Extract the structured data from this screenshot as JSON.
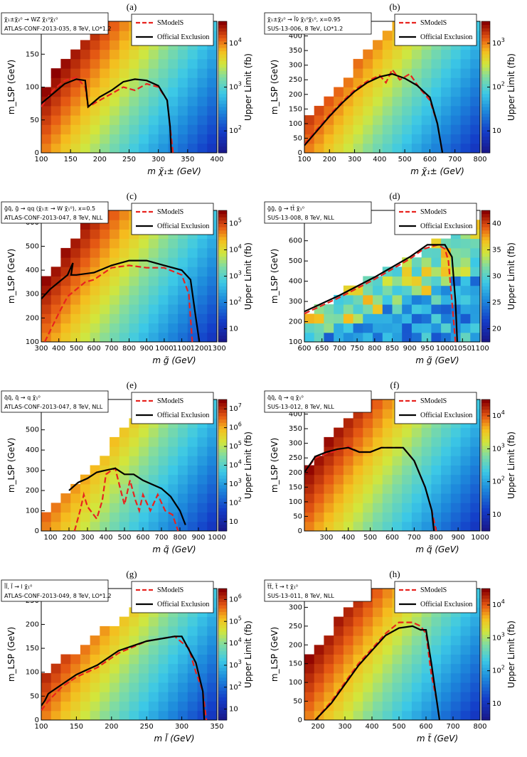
{
  "chart_data": [
    {
      "type": "heatmap",
      "panel_label": "(a)",
      "process": "χ̃₁±χ̃₂⁰ → WZ χ̃₁⁰χ̃₁⁰",
      "analysis": "ATLAS-CONF-2013-035, 8 TeV, LO*1.2",
      "xlabel": "m χ̃₁± (GeV)",
      "ylabel": "m_LSP (GeV)",
      "zlabel": "Upper Limit (fb)",
      "xlim": [
        100,
        400
      ],
      "ylim": [
        0,
        200
      ],
      "xticks": [
        "100",
        "150",
        "200",
        "250",
        "300",
        "350",
        "400"
      ],
      "yticks": [
        "0",
        "50",
        "100",
        "150",
        "200"
      ],
      "zticks": [
        "10^2",
        "10^3",
        "10^4"
      ],
      "zscale": "log",
      "zlim": [
        70,
        15000
      ],
      "legend": [
        "SModelS",
        "Official Exclusion"
      ],
      "diag_offset": 0,
      "zpattern": "diag",
      "series": [
        {
          "name": "SModelS",
          "x": [
            100,
            120,
            140,
            160,
            175,
            180,
            200,
            220,
            240,
            260,
            280,
            300,
            315,
            320,
            325
          ],
          "y": [
            70,
            95,
            110,
            115,
            100,
            70,
            80,
            90,
            100,
            95,
            105,
            100,
            80,
            40,
            0
          ]
        },
        {
          "name": "Official Exclusion",
          "x": [
            100,
            120,
            140,
            160,
            175,
            180,
            200,
            220,
            240,
            260,
            280,
            300,
            315,
            320,
            322
          ],
          "y": [
            75,
            90,
            105,
            112,
            110,
            70,
            85,
            95,
            108,
            112,
            110,
            102,
            80,
            40,
            0
          ]
        }
      ]
    },
    {
      "type": "heatmap",
      "panel_label": "(b)",
      "process": "χ̃₁±χ̃₂⁰ → l̃ν̃ χ̃₁⁰χ̃₁⁰, x=0.95",
      "analysis": "SUS-13-006, 8 TeV, LO*1.2",
      "xlabel": "m χ̃₁± (GeV)",
      "ylabel": "m_LSP (GeV)",
      "zlabel": "Upper Limit (fb)",
      "xlim": [
        100,
        800
      ],
      "ylim": [
        0,
        450
      ],
      "xticks": [
        "100",
        "200",
        "300",
        "400",
        "500",
        "600",
        "700",
        "800"
      ],
      "yticks": [
        "0",
        "50",
        "100",
        "150",
        "200",
        "250",
        "300",
        "350",
        "400",
        "450"
      ],
      "zticks": [
        "10",
        "10^2",
        "10^3"
      ],
      "zscale": "log",
      "zlim": [
        3,
        2000
      ],
      "legend": [
        "SModelS",
        "Official Exclusion"
      ],
      "diag_offset": 0,
      "zpattern": "diag",
      "series": [
        {
          "name": "SModelS",
          "x": [
            100,
            150,
            200,
            250,
            300,
            350,
            400,
            425,
            450,
            480,
            520,
            560,
            600,
            630,
            650
          ],
          "y": [
            30,
            80,
            130,
            175,
            215,
            245,
            265,
            240,
            285,
            250,
            270,
            220,
            180,
            100,
            0
          ]
        },
        {
          "name": "Official Exclusion",
          "x": [
            100,
            150,
            200,
            250,
            300,
            350,
            400,
            450,
            500,
            550,
            600,
            630,
            650
          ],
          "y": [
            25,
            75,
            125,
            170,
            210,
            240,
            260,
            270,
            255,
            230,
            190,
            100,
            0
          ]
        }
      ]
    },
    {
      "type": "heatmap",
      "panel_label": "(c)",
      "process": "g̃q̃, g̃ → qq (χ̃₁± → W χ̃₁⁰), x=0.5",
      "analysis": "ATLAS-CONF-2013-047, 8 TeV, NLL",
      "xlabel": "m g̃ (GeV)",
      "ylabel": "m_LSP (GeV)",
      "zlabel": "Upper Limit (fb)",
      "xlim": [
        300,
        1300
      ],
      "ylim": [
        100,
        650
      ],
      "xticks": [
        "300",
        "400",
        "500",
        "600",
        "700",
        "800",
        "900",
        "1000",
        "1100",
        "1200",
        "1300"
      ],
      "yticks": [
        "100",
        "200",
        "300",
        "400",
        "500",
        "600"
      ],
      "zticks": [
        "10",
        "10^2",
        "10^3",
        "10^4",
        "10^5"
      ],
      "zscale": "log",
      "zlim": [
        3,
        100000
      ],
      "legend": [
        "SModelS",
        "Official Exclusion"
      ],
      "diag_offset": 50,
      "zpattern": "diag",
      "series": [
        {
          "name": "SModelS",
          "x": [
            320,
            400,
            450,
            500,
            550,
            600,
            700,
            800,
            900,
            1000,
            1100,
            1140,
            1150,
            1160
          ],
          "y": [
            100,
            220,
            290,
            320,
            350,
            360,
            410,
            420,
            410,
            410,
            380,
            300,
            200,
            100
          ]
        },
        {
          "name": "Official Exclusion",
          "x": [
            300,
            350,
            400,
            450,
            480,
            470,
            500,
            600,
            700,
            800,
            900,
            1000,
            1100,
            1150,
            1180,
            1200
          ],
          "y": [
            280,
            320,
            350,
            380,
            430,
            380,
            380,
            390,
            420,
            440,
            440,
            420,
            400,
            360,
            200,
            100
          ]
        }
      ]
    },
    {
      "type": "heatmap",
      "panel_label": "(d)",
      "process": "g̃g̃, g̃ → tt̄ χ̃₁⁰",
      "analysis": "SUS-13-008, 8 TeV, NLL",
      "xlabel": "m g̃ (GeV)",
      "ylabel": "m_LSP (GeV)",
      "zlabel": "Upper Limit (fb)",
      "xlim": [
        600,
        1100
      ],
      "ylim": [
        100,
        750
      ],
      "xticks": [
        "600",
        "650",
        "700",
        "750",
        "800",
        "850",
        "900",
        "950",
        "1000",
        "1050",
        "1100"
      ],
      "yticks": [
        "100",
        "200",
        "300",
        "400",
        "500",
        "600",
        "700"
      ],
      "zticks": [
        "20",
        "25",
        "30",
        "35",
        "40"
      ],
      "zscale": "linear",
      "zlim": [
        16,
        41
      ],
      "legend": [
        "SModelS",
        "Official Exclusion"
      ],
      "diag_offset": 350,
      "zpattern": "noise",
      "series": [
        {
          "name": "SModelS",
          "x": [
            600,
            700,
            800,
            900,
            940,
            980,
            1000,
            1010,
            1020,
            1030
          ],
          "y": [
            240,
            320,
            410,
            510,
            560,
            580,
            560,
            500,
            300,
            100
          ]
        },
        {
          "name": "Official Exclusion",
          "x": [
            600,
            700,
            800,
            900,
            950,
            1000,
            1020,
            1030,
            1035
          ],
          "y": [
            250,
            330,
            420,
            520,
            580,
            580,
            520,
            300,
            100
          ]
        }
      ]
    },
    {
      "type": "heatmap",
      "panel_label": "(e)",
      "process": "q̃q̃, q̃ → q χ̃₁⁰",
      "analysis": "ATLAS-CONF-2013-047, 8 TeV, NLL",
      "xlabel": "m q̃ (GeV)",
      "ylabel": "m_LSP (GeV)",
      "zlabel": "Upper Limit (fb)",
      "xlim": [
        50,
        1000
      ],
      "ylim": [
        0,
        650
      ],
      "xticks": [
        "100",
        "200",
        "300",
        "400",
        "500",
        "600",
        "700",
        "800",
        "900",
        "1000"
      ],
      "yticks": [
        "0",
        "100",
        "200",
        "300",
        "400",
        "500",
        "600"
      ],
      "zticks": [
        "10",
        "10^2",
        "10^3",
        "10^4",
        "10^5",
        "10^6",
        "10^7"
      ],
      "zscale": "log",
      "zlim": [
        3,
        30000000
      ],
      "legend": [
        "SModelS",
        "Official Exclusion"
      ],
      "diag_offset": 0,
      "zpattern": "diag",
      "series": [
        {
          "name": "SModelS",
          "x": [
            230,
            260,
            280,
            300,
            350,
            380,
            400,
            430,
            450,
            480,
            500,
            530,
            560,
            580,
            600,
            640,
            680,
            720,
            760,
            790
          ],
          "y": [
            0,
            100,
            180,
            120,
            60,
            150,
            280,
            300,
            310,
            200,
            130,
            250,
            150,
            100,
            180,
            100,
            180,
            100,
            80,
            0
          ]
        },
        {
          "name": "Official Exclusion",
          "x": [
            200,
            250,
            300,
            350,
            400,
            450,
            500,
            550,
            600,
            650,
            700,
            750,
            800,
            830
          ],
          "y": [
            200,
            240,
            260,
            290,
            300,
            310,
            280,
            280,
            250,
            230,
            210,
            170,
            100,
            30
          ]
        }
      ]
    },
    {
      "type": "heatmap",
      "panel_label": "(f)",
      "process": "q̃q̃, q̃ → q χ̃₁⁰",
      "analysis": "SUS-13-012, 8 TeV, NLL",
      "xlabel": "m q̃ (GeV)",
      "ylabel": "m_LSP (GeV)",
      "zlabel": "Upper Limit (fb)",
      "xlim": [
        200,
        1000
      ],
      "ylim": [
        0,
        450
      ],
      "xticks": [
        "300",
        "400",
        "500",
        "600",
        "700",
        "800",
        "900",
        "1000"
      ],
      "yticks": [
        "0",
        "50",
        "100",
        "150",
        "200",
        "250",
        "300",
        "350",
        "400",
        "450"
      ],
      "zticks": [
        "10",
        "10^2",
        "10^3",
        "10^4"
      ],
      "zscale": "log",
      "zlim": [
        10,
        20000
      ],
      "legend": [
        "SModelS",
        "Official Exclusion"
      ],
      "diag_offset": 0,
      "zpattern": "diag",
      "series": [
        {
          "name": "SModelS",
          "x": [
            200,
            250,
            300,
            350,
            400,
            450,
            500,
            550,
            600,
            650,
            700,
            750,
            780,
            800
          ],
          "y": [
            200,
            250,
            265,
            275,
            290,
            270,
            270,
            285,
            285,
            285,
            240,
            150,
            70,
            0
          ]
        },
        {
          "name": "Official Exclusion",
          "x": [
            200,
            250,
            300,
            350,
            400,
            450,
            500,
            550,
            600,
            650,
            700,
            750,
            780,
            790
          ],
          "y": [
            200,
            255,
            270,
            280,
            285,
            270,
            270,
            285,
            285,
            285,
            240,
            150,
            70,
            0
          ]
        }
      ]
    },
    {
      "type": "heatmap",
      "panel_label": "(g)",
      "process": "l̃l̃, l̃ → l χ̃₁⁰",
      "analysis": "ATLAS-CONF-2013-049, 8 TeV, LO*1.2",
      "xlabel": "m l̃ (GeV)",
      "ylabel": "m_LSP (GeV)",
      "zlabel": "Upper Limit (fb)",
      "xlim": [
        100,
        350
      ],
      "ylim": [
        0,
        275
      ],
      "xticks": [
        "100",
        "150",
        "200",
        "250",
        "300",
        "350"
      ],
      "yticks": [
        "0",
        "50",
        "100",
        "150",
        "200",
        "250"
      ],
      "zticks": [
        "10",
        "10^2",
        "10^3",
        "10^4",
        "10^5",
        "10^6"
      ],
      "zscale": "log",
      "zlim": [
        3,
        5000000
      ],
      "legend": [
        "SModelS",
        "Official Exclusion"
      ],
      "diag_offset": 0,
      "zpattern": "diag",
      "series": [
        {
          "name": "SModelS",
          "x": [
            100,
            110,
            130,
            150,
            180,
            210,
            250,
            290,
            310,
            320,
            330,
            335
          ],
          "y": [
            20,
            40,
            70,
            90,
            110,
            140,
            165,
            175,
            150,
            100,
            60,
            0
          ]
        },
        {
          "name": "Official Exclusion",
          "x": [
            100,
            105,
            110,
            130,
            150,
            180,
            210,
            250,
            290,
            300,
            320,
            330,
            332
          ],
          "y": [
            30,
            40,
            55,
            75,
            95,
            115,
            145,
            165,
            175,
            175,
            120,
            60,
            0
          ]
        }
      ]
    },
    {
      "type": "heatmap",
      "panel_label": "(h)",
      "process": "t̃t̃, t̃ → t χ̃₁⁰",
      "analysis": "SUS-13-011, 8 TeV, NLL",
      "xlabel": "m t̃ (GeV)",
      "ylabel": "m_LSP (GeV)",
      "zlabel": "Upper Limit (fb)",
      "xlim": [
        150,
        800
      ],
      "ylim": [
        0,
        350
      ],
      "xticks": [
        "200",
        "300",
        "400",
        "500",
        "600",
        "700",
        "800"
      ],
      "yticks": [
        "0",
        "50",
        "100",
        "150",
        "200",
        "250",
        "300"
      ],
      "zticks": [
        "10",
        "10^2",
        "10^3",
        "10^4"
      ],
      "zscale": "log",
      "zlim": [
        10,
        20000
      ],
      "legend": [
        "SModelS",
        "Official Exclusion"
      ],
      "diag_offset": 0,
      "zpattern": "diag",
      "series": [
        {
          "name": "SModelS",
          "x": [
            190,
            250,
            300,
            350,
            400,
            450,
            500,
            550,
            580,
            600,
            620,
            640,
            650
          ],
          "y": [
            0,
            50,
            100,
            150,
            190,
            230,
            260,
            260,
            250,
            230,
            120,
            50,
            0
          ]
        },
        {
          "name": "Official Exclusion",
          "x": [
            190,
            250,
            300,
            350,
            400,
            450,
            500,
            550,
            580,
            600,
            620,
            640,
            650
          ],
          "y": [
            0,
            45,
            95,
            145,
            185,
            225,
            245,
            250,
            240,
            240,
            150,
            50,
            0
          ]
        }
      ]
    }
  ]
}
